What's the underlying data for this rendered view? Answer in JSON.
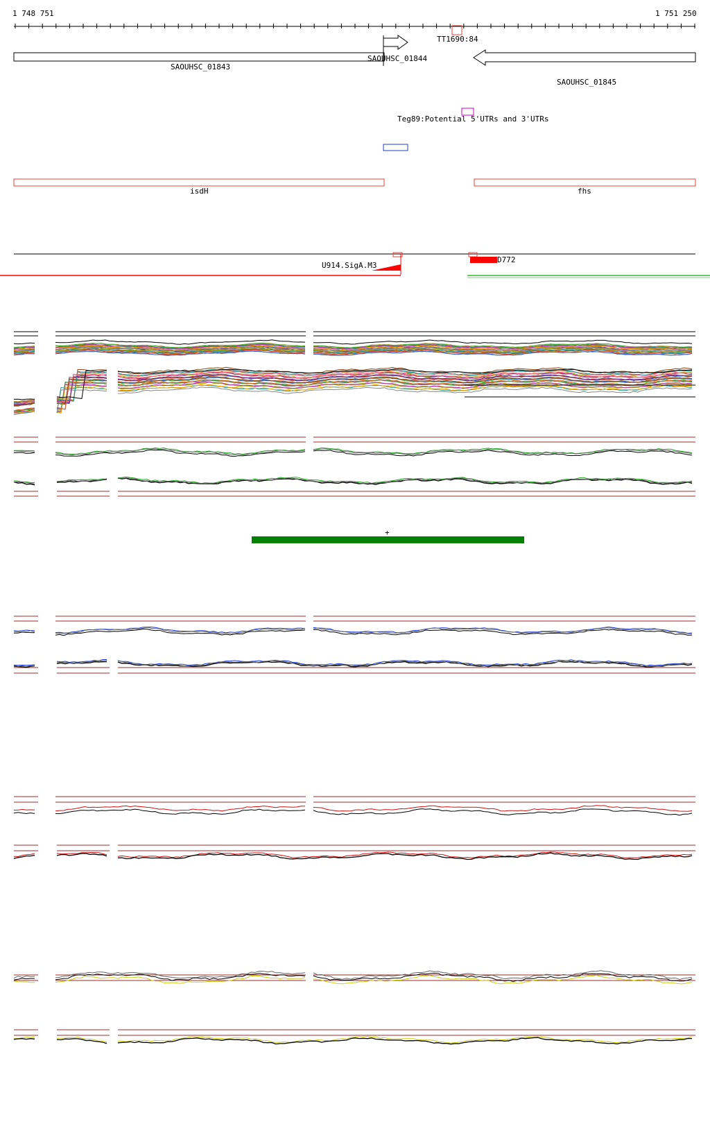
{
  "coordinates": {
    "start": "1 748 751",
    "end": "1 751 250"
  },
  "genes": [
    {
      "id": "SAOUHSC_01843",
      "strand": "-"
    },
    {
      "id": "SAOUHSC_01844",
      "strand": "+"
    },
    {
      "id": "SAOUHSC_01845",
      "strand": "-"
    }
  ],
  "features": {
    "tt_label": "TT1690:84",
    "teg_label": "Teg89:Potential 5'UTRs and 3'UTRs",
    "isd_label": "isdH",
    "fhs_label": "fhs",
    "promoter_label": "U914.SigA.M3",
    "d_label": "D772"
  },
  "marker": "+",
  "colors": {
    "gene_outline": "#000000",
    "annotation_outline": "#e8413c",
    "teg": "#cc00cc",
    "blue_box": "#1f3fcf",
    "promoter": "#ff0000",
    "green_bar": "#008000",
    "ref_line": "#a02a2a",
    "track_green": "#22aa22",
    "track_blue": "#2340d8",
    "track_red": "#cc1010",
    "track_yellow": "#cccc10"
  },
  "track_groups": [
    "multi-condition",
    "green",
    "blue",
    "red",
    "yellow"
  ]
}
